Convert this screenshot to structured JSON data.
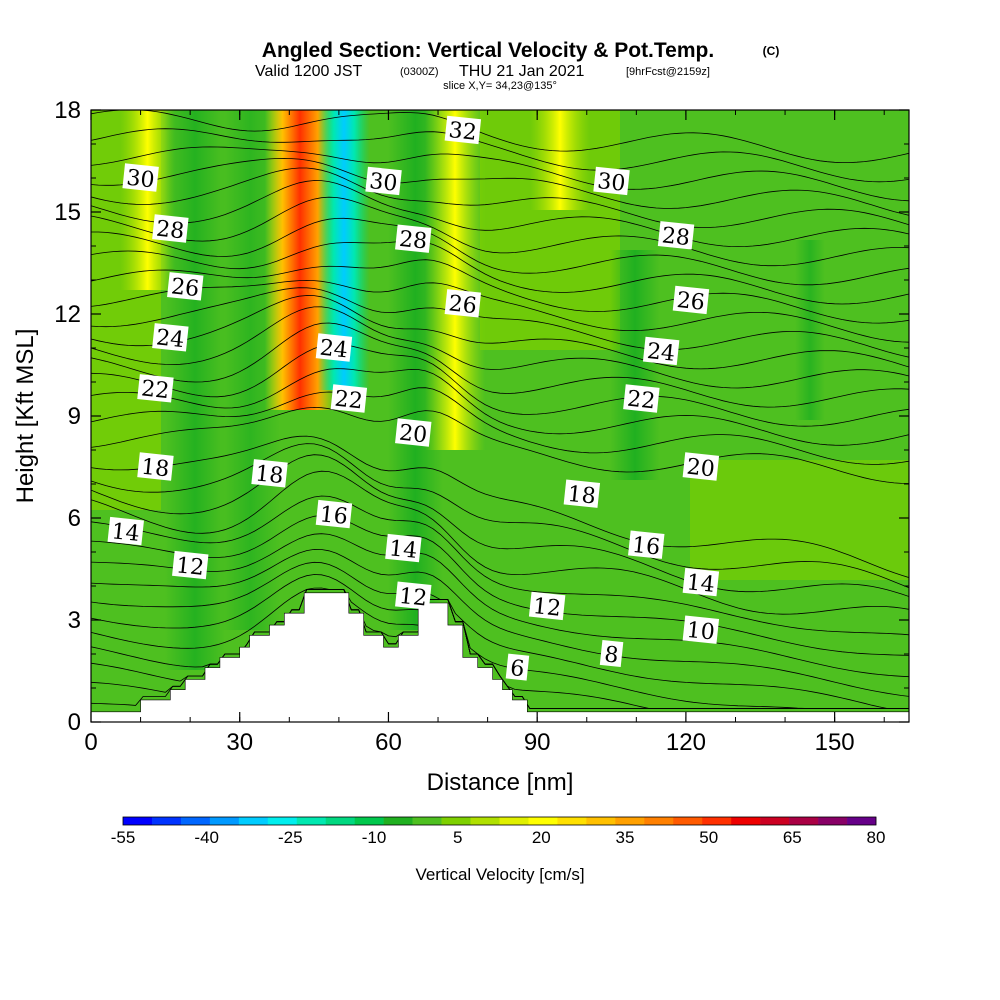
{
  "title": {
    "main": "Angled Section: Vertical Velocity & Pot.Temp.",
    "main_suffix": "(C)",
    "valid_prefix": "Valid 1200 JST",
    "valid_utc": "(0300Z)",
    "valid_date": "THU 21 Jan 2021",
    "forecast": "[9hrFcst@2159z]",
    "slice": "slice X,Y= 34,23@135°"
  },
  "chart_data": {
    "type": "heatmap",
    "xlabel": "Distance [nm]",
    "ylabel": "Height [Kft MSL]",
    "xlim": [
      0,
      165
    ],
    "ylim": [
      0,
      18
    ],
    "x_ticks": [
      "0",
      "30",
      "60",
      "90",
      "120",
      "150"
    ],
    "x_tick_values": [
      0,
      30,
      60,
      90,
      120,
      150
    ],
    "y_ticks": [
      "0",
      "3",
      "6",
      "9",
      "12",
      "15",
      "18"
    ],
    "y_tick_values": [
      0,
      3,
      6,
      9,
      12,
      15,
      18
    ],
    "colorbar": {
      "label": "Vertical Velocity [cm/s]",
      "tick_labels": [
        "-55",
        "-40",
        "-25",
        "-10",
        "5",
        "20",
        "35",
        "50",
        "65",
        "80"
      ],
      "tick_values": [
        -55,
        -40,
        -25,
        -10,
        5,
        20,
        35,
        50,
        65,
        80
      ],
      "colors": [
        "#0000ff",
        "#0033ff",
        "#0066ff",
        "#0099ff",
        "#00ccff",
        "#00eeee",
        "#00e8b0",
        "#00d880",
        "#00c84c",
        "#20b020",
        "#4ec020",
        "#7ed000",
        "#b0e000",
        "#e0f000",
        "#ffff00",
        "#ffe000",
        "#ffc000",
        "#ffa000",
        "#ff8000",
        "#ff5a00",
        "#ff3000",
        "#ee0000",
        "#cc0022",
        "#aa0044",
        "#880066",
        "#660088"
      ]
    },
    "theta_contour_labels": [
      {
        "text": "30",
        "x": 10,
        "y": 16.0
      },
      {
        "text": "28",
        "x": 16,
        "y": 14.5
      },
      {
        "text": "26",
        "x": 19,
        "y": 12.8
      },
      {
        "text": "24",
        "x": 16,
        "y": 11.3
      },
      {
        "text": "22",
        "x": 13,
        "y": 9.8
      },
      {
        "text": "18",
        "x": 13,
        "y": 7.5
      },
      {
        "text": "14",
        "x": 7,
        "y": 5.6
      },
      {
        "text": "12",
        "x": 20,
        "y": 4.6
      },
      {
        "text": "18",
        "x": 36,
        "y": 7.3
      },
      {
        "text": "16",
        "x": 49,
        "y": 6.1
      },
      {
        "text": "14",
        "x": 63,
        "y": 5.1
      },
      {
        "text": "12",
        "x": 65,
        "y": 3.7
      },
      {
        "text": "24",
        "x": 49,
        "y": 11.0
      },
      {
        "text": "22",
        "x": 52,
        "y": 9.5
      },
      {
        "text": "20",
        "x": 65,
        "y": 8.5
      },
      {
        "text": "30",
        "x": 59,
        "y": 15.9
      },
      {
        "text": "28",
        "x": 65,
        "y": 14.2
      },
      {
        "text": "26",
        "x": 75,
        "y": 12.3
      },
      {
        "text": "32",
        "x": 75,
        "y": 17.4
      },
      {
        "text": "30",
        "x": 105,
        "y": 15.9
      },
      {
        "text": "28",
        "x": 118,
        "y": 14.3
      },
      {
        "text": "26",
        "x": 121,
        "y": 12.4
      },
      {
        "text": "24",
        "x": 115,
        "y": 10.9
      },
      {
        "text": "22",
        "x": 111,
        "y": 9.5
      },
      {
        "text": "20",
        "x": 123,
        "y": 7.5
      },
      {
        "text": "18",
        "x": 99,
        "y": 6.7
      },
      {
        "text": "16",
        "x": 112,
        "y": 5.2
      },
      {
        "text": "14",
        "x": 123,
        "y": 4.1
      },
      {
        "text": "12",
        "x": 92,
        "y": 3.4
      },
      {
        "text": "10",
        "x": 123,
        "y": 2.7
      },
      {
        "text": "8",
        "x": 105,
        "y": 2.0
      },
      {
        "text": "6",
        "x": 86,
        "y": 1.6
      }
    ],
    "terrain_profile": [
      {
        "x": 0,
        "y": 0.3
      },
      {
        "x": 10,
        "y": 0.3
      },
      {
        "x": 10,
        "y": 0.65
      },
      {
        "x": 16,
        "y": 0.65
      },
      {
        "x": 16,
        "y": 0.95
      },
      {
        "x": 19,
        "y": 0.95
      },
      {
        "x": 19,
        "y": 1.25
      },
      {
        "x": 23,
        "y": 1.25
      },
      {
        "x": 23,
        "y": 1.6
      },
      {
        "x": 26,
        "y": 1.6
      },
      {
        "x": 26,
        "y": 1.9
      },
      {
        "x": 30,
        "y": 1.9
      },
      {
        "x": 30,
        "y": 2.2
      },
      {
        "x": 32,
        "y": 2.2
      },
      {
        "x": 32,
        "y": 2.55
      },
      {
        "x": 36,
        "y": 2.55
      },
      {
        "x": 36,
        "y": 2.85
      },
      {
        "x": 39,
        "y": 2.85
      },
      {
        "x": 39,
        "y": 3.2
      },
      {
        "x": 43,
        "y": 3.2
      },
      {
        "x": 43,
        "y": 3.8
      },
      {
        "x": 52,
        "y": 3.8
      },
      {
        "x": 52,
        "y": 3.2
      },
      {
        "x": 55,
        "y": 3.2
      },
      {
        "x": 55,
        "y": 2.55
      },
      {
        "x": 59,
        "y": 2.55
      },
      {
        "x": 59,
        "y": 2.2
      },
      {
        "x": 62,
        "y": 2.2
      },
      {
        "x": 62,
        "y": 2.55
      },
      {
        "x": 66,
        "y": 2.55
      },
      {
        "x": 66,
        "y": 3.5
      },
      {
        "x": 72,
        "y": 3.5
      },
      {
        "x": 72,
        "y": 2.85
      },
      {
        "x": 75,
        "y": 2.85
      },
      {
        "x": 75,
        "y": 1.9
      },
      {
        "x": 78,
        "y": 1.9
      },
      {
        "x": 78,
        "y": 1.6
      },
      {
        "x": 81,
        "y": 1.6
      },
      {
        "x": 81,
        "y": 1.25
      },
      {
        "x": 83,
        "y": 1.25
      },
      {
        "x": 83,
        "y": 0.95
      },
      {
        "x": 85,
        "y": 0.95
      },
      {
        "x": 85,
        "y": 0.65
      },
      {
        "x": 88,
        "y": 0.65
      },
      {
        "x": 88,
        "y": 0.3
      },
      {
        "x": 165,
        "y": 0.3
      }
    ]
  }
}
